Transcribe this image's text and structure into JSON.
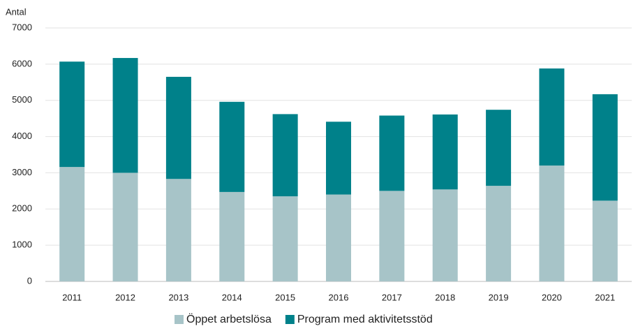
{
  "chart_data": {
    "type": "stacked-bar",
    "y_axis_label": "Antal",
    "categories": [
      "2011",
      "2012",
      "2013",
      "2014",
      "2015",
      "2016",
      "2017",
      "2018",
      "2019",
      "2020",
      "2021"
    ],
    "series": [
      {
        "name": "Öppet arbetslösa",
        "color": "#a7c4c8",
        "values": [
          3160,
          3000,
          2830,
          2470,
          2350,
          2400,
          2500,
          2540,
          2640,
          3200,
          2230
        ]
      },
      {
        "name": "Program med aktivitetsstöd",
        "color": "#00818a",
        "values": [
          2910,
          3170,
          2820,
          2490,
          2270,
          2010,
          2080,
          2070,
          2100,
          2680,
          2940
        ]
      }
    ],
    "ylim": [
      0,
      7000
    ],
    "yticks": [
      0,
      1000,
      2000,
      3000,
      4000,
      5000,
      6000,
      7000
    ],
    "grid": true,
    "legend": "bottom"
  }
}
